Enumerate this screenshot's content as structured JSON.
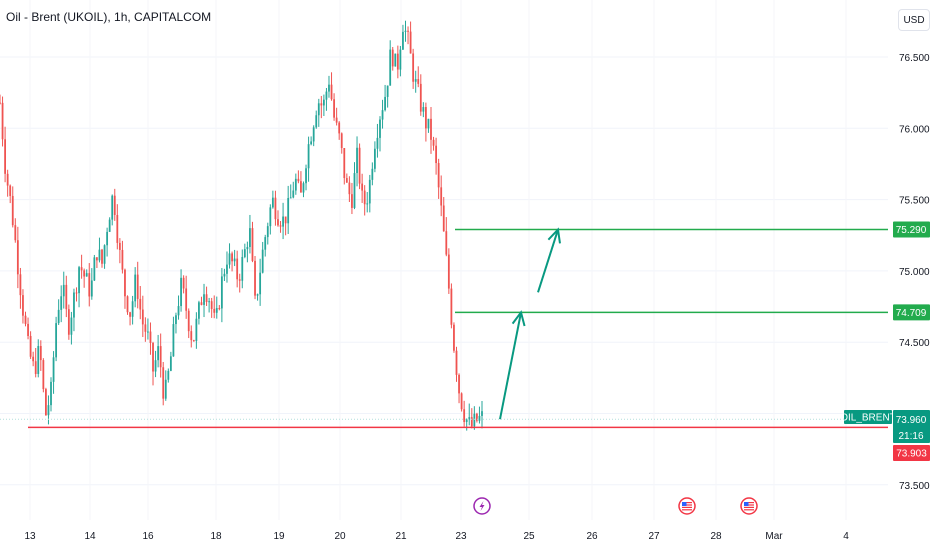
{
  "header": {
    "title": "Oil - Brent (UKOIL), 1h, CAPITALCOM",
    "currency_button": "USD"
  },
  "colors": {
    "up": "#26a69a",
    "down": "#ef5350",
    "support": "#f23645",
    "levels": "#22ab4d",
    "arrows": "#089981",
    "symbol_badge": "#089981",
    "bid_badge": "#f23645",
    "events": "#9c27b0"
  },
  "chart_data": {
    "type": "candlestick",
    "symbol": "OIL_BRENT",
    "interval": "1h",
    "xlabels": [
      "13",
      "14",
      "16",
      "18",
      "19",
      "20",
      "21",
      "23",
      "25",
      "26",
      "27",
      "28",
      "Mar",
      "4"
    ],
    "ylabels": [
      "76.500",
      "76.000",
      "75.500",
      "75.000",
      "74.500",
      "74.000",
      "73.500"
    ],
    "ylim": [
      73.45,
      76.9
    ],
    "price_badges": {
      "symbol": "OIL_BRENT",
      "last": "73.960",
      "countdown": "21:16",
      "bid": "73.903"
    },
    "levels": [
      {
        "label": "75.290",
        "value": 75.29
      },
      {
        "label": "74.709",
        "value": 74.709
      }
    ],
    "support_line": 73.903,
    "event_markers": [
      {
        "icon": "lightning-icon",
        "date": "23"
      },
      {
        "icon": "us-flag-icon",
        "date": "27"
      },
      {
        "icon": "us-flag-icon",
        "date": "28"
      }
    ],
    "price_path": [
      76.18,
      75.7,
      75.45,
      75.1,
      74.75,
      74.45,
      74.3,
      74.45,
      73.98,
      74.15,
      74.7,
      74.9,
      74.6,
      74.8,
      75.05,
      74.95,
      74.85,
      75.15,
      75.05,
      75.35,
      75.55,
      75.15,
      74.85,
      74.7,
      74.95,
      74.65,
      74.55,
      74.3,
      74.45,
      74.1,
      74.35,
      74.7,
      74.9,
      74.7,
      74.5,
      74.7,
      74.9,
      74.8,
      74.6,
      74.9,
      75.1,
      75.05,
      74.95,
      75.1,
      75.3,
      74.75,
      75.05,
      75.3,
      75.5,
      75.4,
      75.35,
      75.45,
      75.65,
      75.5,
      75.8,
      76.0,
      76.2,
      76.15,
      76.35,
      76.05,
      75.9,
      75.6,
      75.5,
      75.8,
      75.45,
      75.55,
      75.9,
      76.1,
      76.25,
      76.55,
      76.4,
      76.75,
      76.6,
      76.35,
      76.2,
      76.05,
      75.95,
      75.7,
      75.35,
      74.95,
      74.5,
      74.15,
      73.98,
      73.9,
      73.95,
      73.97
    ],
    "forecast_arrows": [
      {
        "from": {
          "date": "23",
          "price": 73.96
        },
        "to": {
          "date": "24",
          "price": 74.709
        }
      },
      {
        "from": {
          "date": "24",
          "price": 74.85
        },
        "to": {
          "date": "25",
          "price": 75.29
        }
      }
    ]
  }
}
